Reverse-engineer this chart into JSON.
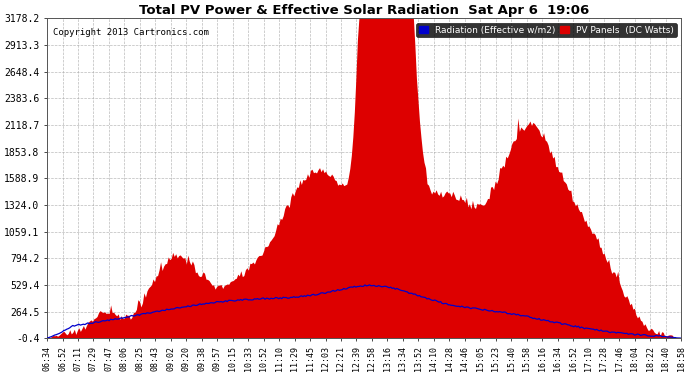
{
  "title": "Total PV Power & Effective Solar Radiation  Sat Apr 6  19:06",
  "copyright": "Copyright 2013 Cartronics.com",
  "legend_radiation": "Radiation (Effective w/m2)",
  "legend_pv": "PV Panels  (DC Watts)",
  "yticks": [
    -0.4,
    264.5,
    529.4,
    794.2,
    1059.1,
    1324.0,
    1588.9,
    1853.8,
    2118.7,
    2383.6,
    2648.4,
    2913.3,
    3178.2
  ],
  "ymin": -0.4,
  "ymax": 3178.2,
  "bg_color": "#ffffff",
  "plot_bg_color": "#ffffff",
  "grid_color": "#aaaaaa",
  "pv_color": "#dd0000",
  "radiation_color": "#0000cc",
  "xtick_labels": [
    "06:34",
    "06:52",
    "07:11",
    "07:29",
    "07:47",
    "08:06",
    "08:25",
    "08:43",
    "09:02",
    "09:20",
    "09:38",
    "09:57",
    "10:15",
    "10:33",
    "10:52",
    "11:10",
    "11:29",
    "11:45",
    "12:03",
    "12:21",
    "12:39",
    "12:58",
    "13:16",
    "13:34",
    "13:52",
    "14:10",
    "14:28",
    "14:46",
    "15:05",
    "15:23",
    "15:40",
    "15:58",
    "16:16",
    "16:34",
    "16:52",
    "17:10",
    "17:28",
    "17:46",
    "18:04",
    "18:22",
    "18:40",
    "18:58"
  ]
}
